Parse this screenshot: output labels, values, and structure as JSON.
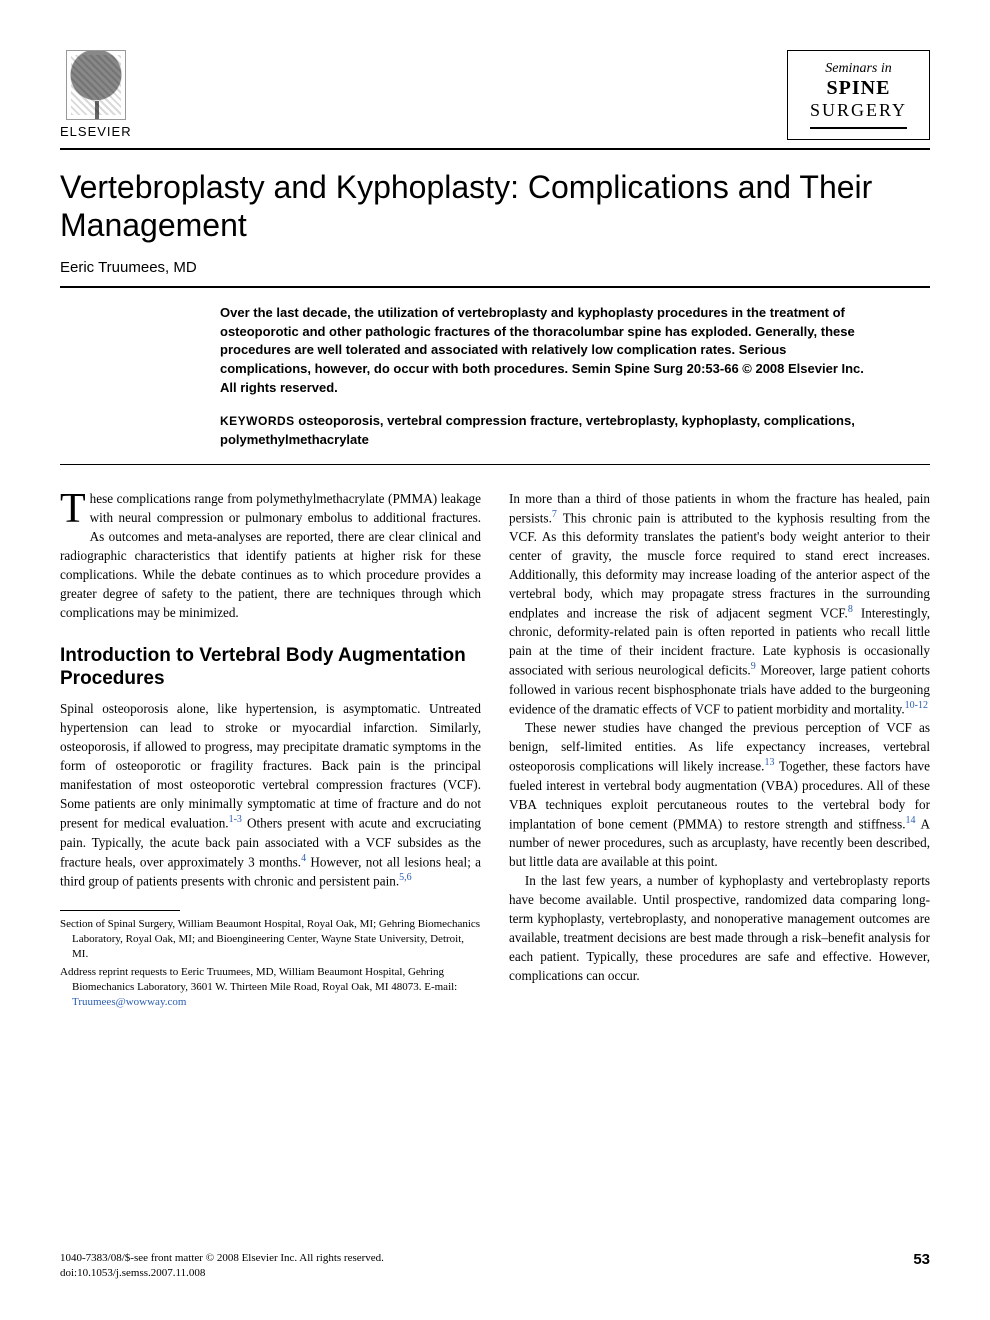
{
  "publisher": {
    "name": "ELSEVIER"
  },
  "journal": {
    "supertitle": "Seminars in",
    "line1": "SPINE",
    "line2": "SURGERY"
  },
  "article": {
    "title": "Vertebroplasty and Kyphoplasty: Complications and Their Management",
    "author": "Eeric Truumees, MD"
  },
  "abstract": "Over the last decade, the utilization of vertebroplasty and kyphoplasty procedures in the treatment of osteoporotic and other pathologic fractures of the thoracolumbar spine has exploded. Generally, these procedures are well tolerated and associated with relatively low complication rates. Serious complications, however, do occur with both procedures. Semin Spine Surg 20:53-66 © 2008 Elsevier Inc. All rights reserved.",
  "keywords": {
    "label": "KEYWORDS",
    "text": "osteoporosis, vertebral compression fracture, vertebroplasty, kyphoplasty, complications, polymethylmethacrylate"
  },
  "body": {
    "dropcap": "T",
    "intro_rest": "hese complications range from polymethylmethacrylate (PMMA) leakage with neural compression or pulmonary embolus to additional fractures. As outcomes and meta-analyses are reported, there are clear clinical and radiographic characteristics that identify patients at higher risk for these complications. While the debate continues as to which procedure provides a greater degree of safety to the patient, there are techniques through which complications may be minimized.",
    "section1_heading": "Introduction to Vertebral Body Augmentation Procedures",
    "section1_p1a": "Spinal osteoporosis alone, like hypertension, is asymptomatic. Untreated hypertension can lead to stroke or myocardial infarction. Similarly, osteoporosis, if allowed to progress, may precipitate dramatic symptoms in the form of osteoporotic or fragility fractures. Back pain is the principal manifestation of most osteoporotic vertebral compression fractures (VCF). Some patients are only minimally symptomatic at time of fracture and do not present for medical evaluation.",
    "cite1": "1-3",
    "section1_p1b": " Others present with acute and excruciating pain. Typically, the acute back pain associated with a VCF subsides as the fracture heals, over approximately 3 months.",
    "cite2": "4",
    "section1_p1c": " However, not all lesions heal; a third group of patients presents with chronic and persistent pain.",
    "cite3": "5,6",
    "col2_p1a": "In more than a third of those patients in whom the fracture has healed, pain persists.",
    "cite4": "7",
    "col2_p1b": " This chronic pain is attributed to the kyphosis resulting from the VCF. As this deformity translates the patient's body weight anterior to their center of gravity, the muscle force required to stand erect increases. Additionally, this deformity may increase loading of the anterior aspect of the vertebral body, which may propagate stress fractures in the surrounding endplates and increase the risk of adjacent segment VCF.",
    "cite5": "8",
    "col2_p1c": " Interestingly, chronic, deformity-related pain is often reported in patients who recall little pain at the time of their incident fracture. Late kyphosis is occasionally associated with serious neurological deficits.",
    "cite6": "9",
    "col2_p1d": " Moreover, large patient cohorts followed in various recent bisphosphonate trials have added to the burgeoning evidence of the dramatic effects of VCF to patient morbidity and mortality.",
    "cite7": "10-12",
    "col2_p2a": "These newer studies have changed the previous perception of VCF as benign, self-limited entities. As life expectancy increases, vertebral osteoporosis complications will likely increase.",
    "cite8": "13",
    "col2_p2b": " Together, these factors have fueled interest in vertebral body augmentation (VBA) procedures. All of these VBA techniques exploit percutaneous routes to the vertebral body for implantation of bone cement (PMMA) to restore strength and stiffness.",
    "cite9": "14",
    "col2_p2c": " A number of newer procedures, such as arcuplasty, have recently been described, but little data are available at this point.",
    "col2_p3": "In the last few years, a number of kyphoplasty and vertebroplasty reports have become available. Until prospective, randomized data comparing long-term kyphoplasty, vertebroplasty, and nonoperative management outcomes are available, treatment decisions are best made through a risk–benefit analysis for each patient. Typically, these procedures are safe and effective. However, complications can occur."
  },
  "affiliations": {
    "line1": "Section of Spinal Surgery, William Beaumont Hospital, Royal Oak, MI; Gehring Biomechanics Laboratory, Royal Oak, MI; and Bioengineering Center, Wayne State University, Detroit, MI.",
    "line2a": "Address reprint requests to Eeric Truumees, MD, William Beaumont Hospital, Gehring Biomechanics Laboratory, 3601 W. Thirteen Mile Road, Royal Oak, MI 48073. E-mail: ",
    "email": "Truumees@wowway.com"
  },
  "footer": {
    "copyright": "1040-7383/08/$-see front matter © 2008 Elsevier Inc. All rights reserved.",
    "doi": "doi:10.1053/j.semss.2007.11.008",
    "page": "53"
  },
  "colors": {
    "citation": "#2a5db0",
    "text": "#000000",
    "background": "#ffffff"
  }
}
